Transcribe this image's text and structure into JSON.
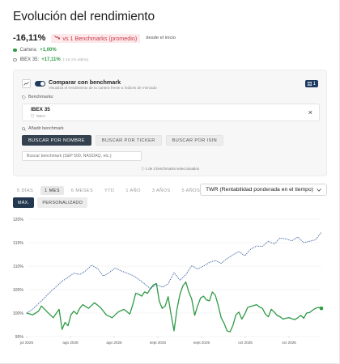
{
  "page": {
    "title": "Evolución del rendimiento",
    "performance_value": "-16,11%",
    "comparison_pill": "vs 1 Benchmarks (promedio)",
    "since_label": "desde el inicio"
  },
  "legend": [
    {
      "name": "Cartera:",
      "value": "+1,00%",
      "note": "",
      "color": "#2e9a47"
    },
    {
      "name": "IBEX 35:",
      "value": "+17,11%",
      "note": "(-16,1% alpha)",
      "color": "#4a6ea9"
    }
  ],
  "benchmark_panel": {
    "title": "Comparar con benchmark",
    "subtitle": "Visualiza el rendimiento de tu cartera frente a índices de mercado",
    "count_badge": "1",
    "benchmarks_label": "Benchmarks:",
    "benchmark": {
      "name": "IBEX 35",
      "code": "^IBEX"
    },
    "add_label": "Añadir benchmark",
    "search_buttons": [
      "BUSCAR POR NOMBRE",
      "BUSCAR POR TICKER",
      "BUSCAR POR ISIN"
    ],
    "search_placeholder": "Buscar benchmark (S&P 500, NASDAQ, etc.)",
    "selected_count": "1 de 3 benchmarks seleccionados"
  },
  "period_tabs": [
    "5 DÍAS",
    "1 MES",
    "6 MESES",
    "YTD",
    "1 AÑO",
    "3 AÑOS",
    "5 AÑOS"
  ],
  "period_selected": "1 MES",
  "extra_tabs": [
    "MÁX.",
    "PERSONALIZADO"
  ],
  "extra_selected": "MÁX.",
  "metric_select": "TWR (Rentabilidad ponderada en el tiempo)",
  "colors": {
    "portfolio": "#2e9a47",
    "benchmark": "#4a6ea9",
    "accent": "#1e3a5f"
  },
  "chart_data": {
    "type": "line",
    "y_ticks": [
      "120%",
      "115%",
      "110%",
      "105%",
      "100%",
      "95%"
    ],
    "x_ticks": [
      "jul 2025",
      "ago 2025",
      "ago 2025",
      "sept 2025",
      "sept 2025",
      "oct 2025",
      "oct 2025"
    ],
    "ylim": [
      95,
      120
    ],
    "x_range": [
      0,
      100
    ],
    "series": [
      {
        "name": "Cartera",
        "style": "solid",
        "color": "#2e9a47",
        "x": [
          0,
          2,
          4,
          5,
          7,
          9,
          11,
          12,
          13,
          14,
          15,
          16,
          17,
          18,
          19,
          21,
          23,
          25,
          27,
          29,
          31,
          33,
          35,
          36,
          37,
          38,
          39,
          40,
          41,
          42,
          43,
          44,
          45,
          46,
          47,
          48,
          49,
          50,
          51,
          52,
          53,
          54,
          55,
          56,
          57,
          58,
          59,
          60,
          61,
          62,
          63,
          64,
          65,
          66,
          67,
          68,
          69,
          70,
          71,
          72,
          73,
          74,
          75,
          76,
          77,
          78,
          79,
          80,
          81,
          82,
          83,
          84,
          85,
          86,
          87,
          88,
          89,
          90,
          91,
          92,
          93,
          94,
          95,
          96,
          97,
          98,
          99,
          100
        ],
        "y": [
          100.0,
          99.6,
          100.4,
          101.5,
          100.2,
          99.0,
          100.8,
          96.5,
          98.0,
          97.3,
          99.6,
          100.4,
          99.8,
          101.0,
          101.8,
          101.0,
          102.2,
          101.2,
          99.6,
          99.0,
          100.2,
          100.8,
          99.8,
          101.8,
          104.2,
          104.0,
          103.6,
          104.5,
          104.2,
          105.2,
          106.0,
          106.3,
          102.5,
          101.0,
          101.5,
          103.5,
          99.6,
          96.2,
          100.8,
          104.0,
          105.8,
          106.6,
          104.5,
          103.0,
          99.5,
          101.5,
          103.2,
          103.6,
          102.8,
          102.6,
          104.5,
          103.8,
          101.6,
          99.0,
          97.8,
          96.2,
          96.0,
          97.4,
          99.6,
          100.2,
          98.7,
          99.8,
          101.2,
          101.4,
          101.6,
          101.8,
          101.3,
          101.0,
          99.8,
          99.2,
          100.8,
          100.2,
          99.5,
          99.2,
          98.7,
          98.9,
          99.0,
          98.8,
          98.6,
          99.0,
          99.5,
          98.9,
          100.0,
          100.1,
          100.6,
          101.0,
          101.2,
          101.0
        ]
      },
      {
        "name": "IBEX 35",
        "style": "dotted",
        "color": "#4a6ea9",
        "x": [
          0,
          2,
          4,
          6,
          8,
          10,
          12,
          14,
          16,
          18,
          20,
          22,
          24,
          26,
          28,
          30,
          32,
          34,
          36,
          38,
          40,
          42,
          44,
          46,
          48,
          50,
          52,
          54,
          56,
          58,
          60,
          62,
          64,
          66,
          68,
          70,
          72,
          74,
          76,
          78,
          80,
          82,
          84,
          86,
          88,
          90,
          92,
          94,
          96,
          98,
          100
        ],
        "y": [
          100.0,
          100.8,
          102.0,
          103.2,
          104.5,
          105.6,
          106.8,
          107.6,
          108.5,
          108.2,
          109.0,
          110.2,
          109.5,
          107.9,
          108.6,
          109.6,
          109.0,
          108.5,
          108.0,
          107.2,
          106.2,
          105.2,
          106.1,
          105.5,
          106.2,
          108.6,
          107.0,
          108.2,
          110.1,
          109.4,
          110.0,
          110.8,
          111.2,
          110.6,
          111.6,
          112.4,
          113.1,
          112.2,
          113.6,
          114.3,
          114.2,
          115.3,
          114.7,
          116.0,
          115.8,
          115.4,
          116.2,
          115.0,
          115.3,
          115.6,
          117.2
        ]
      }
    ]
  }
}
